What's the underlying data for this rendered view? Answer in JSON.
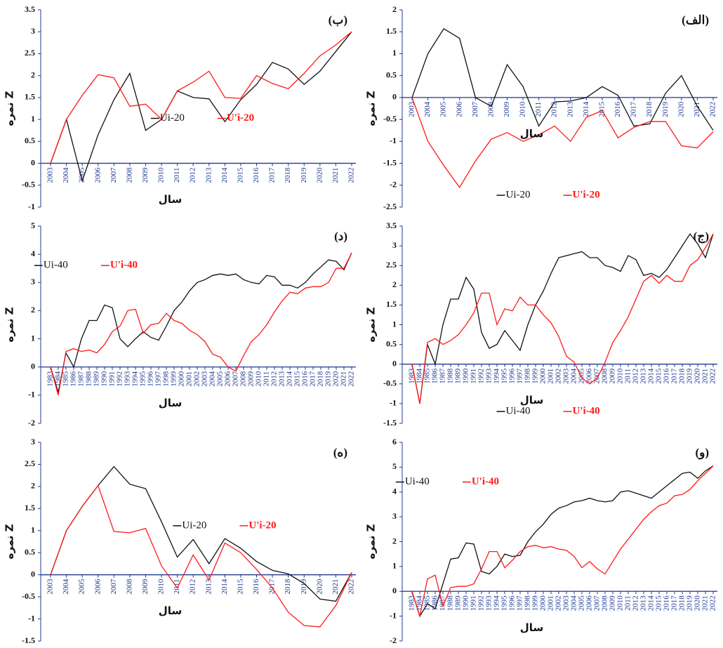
{
  "chart_data": [
    {
      "type": "line",
      "title": "(الف)",
      "xlabel": "سال",
      "ylabel": "نمره Z",
      "legend": "lower center",
      "categories": [
        "2003",
        "2004",
        "2005",
        "2006",
        "2007",
        "2008",
        "2009",
        "2010",
        "2011",
        "2012",
        "2013",
        "2014",
        "2015",
        "2016",
        "2017",
        "2018",
        "2019",
        "2020",
        "2021",
        "2022"
      ],
      "ylim": [
        -2.5,
        2
      ],
      "yticks": [
        -2.5,
        -2,
        -1.5,
        -1,
        -0.5,
        0,
        0.5,
        1,
        1.5,
        2
      ],
      "series": [
        {
          "name": "Ui-20",
          "color": "#111111",
          "values": [
            0,
            1.0,
            1.57,
            1.35,
            0,
            -0.2,
            0.75,
            0.25,
            -0.65,
            -0.1,
            -0.08,
            0,
            0.25,
            0.05,
            -0.65,
            -0.6,
            0.1,
            0.5,
            -0.2,
            -0.75
          ]
        },
        {
          "name": "U'i-20",
          "color": "#ff1a1a",
          "values": [
            0,
            -1.0,
            -1.55,
            -2.05,
            -1.45,
            -0.95,
            -0.8,
            -1.0,
            -0.85,
            -0.65,
            -1.0,
            -0.45,
            -0.3,
            -0.92,
            -0.68,
            -0.55,
            -0.55,
            -1.1,
            -1.15,
            -0.78
          ]
        }
      ]
    },
    {
      "type": "line",
      "title": "(ب)",
      "xlabel": "سال",
      "ylabel": "نمره Z",
      "legend": "center",
      "categories": [
        "2003",
        "2004",
        "2005",
        "2006",
        "2007",
        "2008",
        "2009",
        "2010",
        "2011",
        "2012",
        "2013",
        "2014",
        "2015",
        "2016",
        "2017",
        "2018",
        "2019",
        "2020",
        "2021",
        "2022"
      ],
      "ylim": [
        -1,
        3.5
      ],
      "yticks": [
        -1,
        -0.5,
        0,
        0.5,
        1,
        1.5,
        2,
        2.5,
        3,
        3.5
      ],
      "series": [
        {
          "name": "Ui-20",
          "color": "#111111",
          "values": [
            0,
            1.0,
            -0.4,
            0.65,
            1.45,
            2.05,
            0.75,
            1.0,
            1.65,
            1.5,
            1.47,
            0.95,
            1.45,
            1.8,
            2.3,
            2.15,
            1.8,
            2.1,
            2.55,
            3.0
          ]
        },
        {
          "name": "U'i-20",
          "color": "#ff1a1a",
          "values": [
            0,
            1.0,
            1.55,
            2.02,
            1.95,
            1.3,
            1.35,
            1.0,
            1.65,
            1.85,
            2.1,
            1.5,
            1.48,
            2.0,
            1.82,
            1.7,
            2.05,
            2.45,
            2.7,
            3.0
          ]
        }
      ]
    },
    {
      "type": "line",
      "title": "(ج)",
      "xlabel": "سال",
      "ylabel": "نمره Z",
      "legend": "lower center",
      "categories": [
        "1983",
        "1984",
        "1985",
        "1986",
        "1987",
        "1988",
        "1989",
        "1990",
        "1991",
        "1992",
        "1993",
        "1994",
        "1995",
        "1996",
        "1997",
        "1998",
        "1999",
        "2000",
        "2001",
        "2002",
        "2003",
        "2004",
        "2005",
        "2006",
        "2007",
        "2008",
        "2009",
        "2010",
        "2011",
        "2012",
        "2013",
        "2014",
        "2015",
        "2016",
        "2017",
        "2018",
        "2019",
        "2020",
        "2021",
        "2022"
      ],
      "ylim": [
        -1.5,
        3.5
      ],
      "yticks": [
        -1.5,
        -1,
        -0.5,
        0,
        0.5,
        1,
        1.5,
        2,
        2.5,
        3,
        3.5
      ],
      "series": [
        {
          "name": "Ui-40",
          "color": "#111111",
          "values": [
            0,
            -1.0,
            0.5,
            0,
            1.0,
            1.65,
            1.65,
            2.2,
            1.9,
            0.8,
            0.4,
            0.5,
            0.85,
            0.6,
            0.35,
            1.0,
            1.5,
            1.85,
            2.3,
            2.7,
            2.75,
            2.8,
            2.85,
            2.7,
            2.7,
            2.5,
            2.45,
            2.35,
            2.75,
            2.65,
            2.25,
            2.3,
            2.2,
            2.4,
            2.7,
            3.0,
            3.3,
            3.05,
            2.7,
            3.3
          ]
        },
        {
          "name": "U'i-40",
          "color": "#ff1a1a",
          "values": [
            0,
            -1.0,
            0.55,
            0.65,
            0.5,
            0.6,
            0.75,
            1.0,
            1.3,
            1.8,
            1.8,
            1.0,
            1.4,
            1.35,
            1.7,
            1.5,
            1.5,
            1.25,
            1.05,
            0.7,
            0.2,
            0.05,
            -0.35,
            -0.5,
            -0.35,
            0.05,
            0.55,
            0.85,
            1.2,
            1.65,
            2.1,
            2.25,
            2.05,
            2.25,
            2.1,
            2.1,
            2.5,
            2.65,
            2.95,
            3.3
          ]
        }
      ]
    },
    {
      "type": "line",
      "title": "(د)",
      "xlabel": "سال",
      "ylabel": "نمره Z",
      "legend": "upper left",
      "categories": [
        "1983",
        "1984",
        "1985",
        "1986",
        "1987",
        "1988",
        "1989",
        "1990",
        "1991",
        "1992",
        "1993",
        "1994",
        "1995",
        "1996",
        "1997",
        "1998",
        "1999",
        "2000",
        "2001",
        "2002",
        "2003",
        "2004",
        "2005",
        "2006",
        "2007",
        "2008",
        "2009",
        "2010",
        "2011",
        "2012",
        "2013",
        "2014",
        "2015",
        "2016",
        "2017",
        "2018",
        "2019",
        "2020",
        "2021",
        "2022"
      ],
      "ylim": [
        -2,
        5
      ],
      "yticks": [
        -2,
        -1,
        0,
        1,
        2,
        3,
        4,
        5
      ],
      "series": [
        {
          "name": "Ui-40",
          "color": "#111111",
          "values": [
            0,
            -0.9,
            0.5,
            0,
            1.0,
            1.65,
            1.65,
            2.2,
            2.1,
            1.0,
            0.72,
            1.0,
            1.25,
            1.05,
            0.95,
            1.45,
            2.0,
            2.3,
            2.7,
            3.0,
            3.1,
            3.25,
            3.3,
            3.25,
            3.3,
            3.1,
            3.0,
            2.95,
            3.25,
            3.2,
            2.9,
            2.9,
            2.8,
            3.0,
            3.3,
            3.55,
            3.8,
            3.75,
            3.45,
            4.05
          ]
        },
        {
          "name": "U'i-40",
          "color": "#ff1a1a",
          "values": [
            0,
            -1.0,
            0.55,
            0.65,
            0.55,
            0.6,
            0.5,
            0.8,
            1.25,
            1.45,
            2.0,
            2.05,
            1.2,
            1.5,
            1.55,
            1.9,
            1.65,
            1.55,
            1.3,
            1.15,
            0.9,
            0.45,
            0.35,
            0,
            -0.15,
            0.4,
            0.9,
            1.15,
            1.5,
            1.95,
            2.35,
            2.65,
            2.6,
            2.8,
            2.85,
            2.85,
            3.0,
            3.5,
            3.5,
            4.05
          ]
        }
      ]
    },
    {
      "type": "line",
      "title": "(ه)",
      "xlabel": "سال",
      "ylabel": "نمره Z",
      "legend": "center right",
      "categories": [
        "2003",
        "2004",
        "2005",
        "2006",
        "2007",
        "2008",
        "2009",
        "2010",
        "2011",
        "2012",
        "2013",
        "2014",
        "2015",
        "2016",
        "2017",
        "2018",
        "2019",
        "2020",
        "2021",
        "2022"
      ],
      "ylim": [
        -1.5,
        3
      ],
      "yticks": [
        -1.5,
        -1,
        -0.5,
        0,
        0.5,
        1,
        1.5,
        2,
        2.5,
        3
      ],
      "series": [
        {
          "name": "Ui-20",
          "color": "#111111",
          "values": [
            0,
            1.0,
            1.55,
            2.02,
            2.45,
            2.05,
            1.95,
            1.2,
            0.4,
            0.8,
            0.25,
            0.82,
            0.6,
            0.3,
            0.1,
            0.02,
            -0.2,
            -0.55,
            -0.6,
            0.05
          ]
        },
        {
          "name": "U'i-20",
          "color": "#ff1a1a",
          "values": [
            0,
            1.0,
            1.55,
            2.02,
            0.98,
            0.95,
            1.05,
            0.2,
            -0.3,
            0.45,
            -0.12,
            0.72,
            0.5,
            0.12,
            -0.3,
            -0.85,
            -1.15,
            -1.18,
            -0.7,
            0.05
          ]
        }
      ]
    },
    {
      "type": "line",
      "title": "(و)",
      "xlabel": "سال",
      "ylabel": "نمره Z",
      "legend": "upper left",
      "categories": [
        "1983",
        "1984",
        "1985",
        "1986",
        "1987",
        "1988",
        "1989",
        "1990",
        "1991",
        "1992",
        "1993",
        "1994",
        "1995",
        "1996",
        "1997",
        "1998",
        "1999",
        "2000",
        "2001",
        "2002",
        "2003",
        "2004",
        "2005",
        "2006",
        "2007",
        "2008",
        "2009",
        "2010",
        "2011",
        "2012",
        "2013",
        "2014",
        "2015",
        "2016",
        "2017",
        "2018",
        "2019",
        "2020",
        "2021",
        "2022"
      ],
      "ylim": [
        -2,
        6
      ],
      "yticks": [
        -2,
        -1,
        0,
        1,
        2,
        3,
        4,
        5,
        6
      ],
      "series": [
        {
          "name": "Ui-40",
          "color": "#111111",
          "values": [
            0,
            -1.0,
            -0.5,
            -0.7,
            0.3,
            1.3,
            1.35,
            1.95,
            1.9,
            0.8,
            0.7,
            1.0,
            1.5,
            1.4,
            1.45,
            2.0,
            2.4,
            2.7,
            3.1,
            3.35,
            3.45,
            3.6,
            3.65,
            3.75,
            3.65,
            3.6,
            3.65,
            4.0,
            4.05,
            3.95,
            3.85,
            3.75,
            4.0,
            4.25,
            4.5,
            4.75,
            4.8,
            4.55,
            4.85,
            5.05
          ]
        },
        {
          "name": "U'i-40",
          "color": "#ff1a1a",
          "values": [
            0,
            -1.0,
            0.5,
            0.65,
            -0.6,
            0.15,
            0.2,
            0.2,
            0.3,
            0.9,
            1.6,
            1.6,
            0.95,
            1.25,
            1.6,
            1.8,
            1.85,
            1.75,
            1.8,
            1.7,
            1.65,
            1.4,
            0.95,
            1.2,
            0.9,
            0.7,
            1.2,
            1.7,
            2.1,
            2.5,
            2.9,
            3.2,
            3.45,
            3.55,
            3.85,
            3.9,
            4.1,
            4.45,
            4.75,
            5.05
          ]
        }
      ]
    }
  ]
}
